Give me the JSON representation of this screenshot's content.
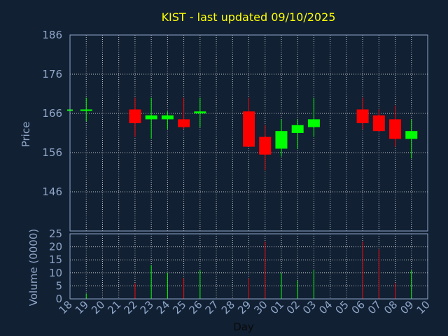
{
  "chart_data": {
    "type": "candlestick",
    "title": "KIST - last updated 09/10/2025",
    "xlabel": "Day",
    "price_axis": {
      "label": "Price",
      "ylim": [
        136,
        186
      ],
      "ticks": [
        146,
        156,
        166,
        176,
        186
      ]
    },
    "volume_axis": {
      "label": "Volume (0000)",
      "ylim": [
        0,
        25
      ],
      "ticks": [
        0,
        5,
        10,
        15,
        20,
        25
      ]
    },
    "x_ticks": [
      "18",
      "19",
      "20",
      "21",
      "22",
      "23",
      "24",
      "25",
      "26",
      "27",
      "28",
      "29",
      "30",
      "01",
      "02",
      "03",
      "04",
      "05",
      "06",
      "07",
      "08",
      "09",
      "10"
    ],
    "grid": true,
    "colors": {
      "up": "#00ff00",
      "down": "#ff0000",
      "title": "#ffff00",
      "axis_text": "#8fa6c8",
      "background": "#112033",
      "grid": "#c8c8c8"
    },
    "candles": [
      {
        "day": "18",
        "open": 167,
        "high": 167,
        "low": 167,
        "close": 167,
        "volume": 0
      },
      {
        "day": "19",
        "open": 167,
        "high": 170,
        "low": 164,
        "close": 167,
        "volume": 2
      },
      {
        "day": "22",
        "open": 167,
        "high": 170,
        "low": 160,
        "close": 163.5,
        "volume": 6
      },
      {
        "day": "23",
        "open": 164.5,
        "high": 170,
        "low": 159.5,
        "close": 165.5,
        "volume": 13
      },
      {
        "day": "24",
        "open": 164.5,
        "high": 166.5,
        "low": 162,
        "close": 165.5,
        "volume": 10
      },
      {
        "day": "25",
        "open": 164.5,
        "high": 170,
        "low": 162,
        "close": 162.5,
        "volume": 8
      },
      {
        "day": "26",
        "open": 166,
        "high": 170,
        "low": 162.5,
        "close": 166.5,
        "volume": 11
      },
      {
        "day": "29",
        "open": 166.5,
        "high": 170,
        "low": 157.5,
        "close": 157.5,
        "volume": 8
      },
      {
        "day": "30",
        "open": 160,
        "high": 163,
        "low": 151.5,
        "close": 155.5,
        "volume": 22
      },
      {
        "day": "01",
        "open": 157,
        "high": 164.5,
        "low": 155,
        "close": 161.5,
        "volume": 10
      },
      {
        "day": "02",
        "open": 161,
        "high": 164.5,
        "low": 157,
        "close": 163,
        "volume": 7
      },
      {
        "day": "03",
        "open": 162.5,
        "high": 170,
        "low": 160,
        "close": 164.5,
        "volume": 11
      },
      {
        "day": "06",
        "open": 167,
        "high": 170,
        "low": 162,
        "close": 163.5,
        "volume": 22
      },
      {
        "day": "07",
        "open": 165.5,
        "high": 167,
        "low": 161.5,
        "close": 161.5,
        "volume": 19
      },
      {
        "day": "08",
        "open": 164.5,
        "high": 168,
        "low": 157.5,
        "close": 159.5,
        "volume": 6
      },
      {
        "day": "09",
        "open": 159.5,
        "high": 164.5,
        "low": 154.5,
        "close": 161.5,
        "volume": 11
      }
    ]
  }
}
